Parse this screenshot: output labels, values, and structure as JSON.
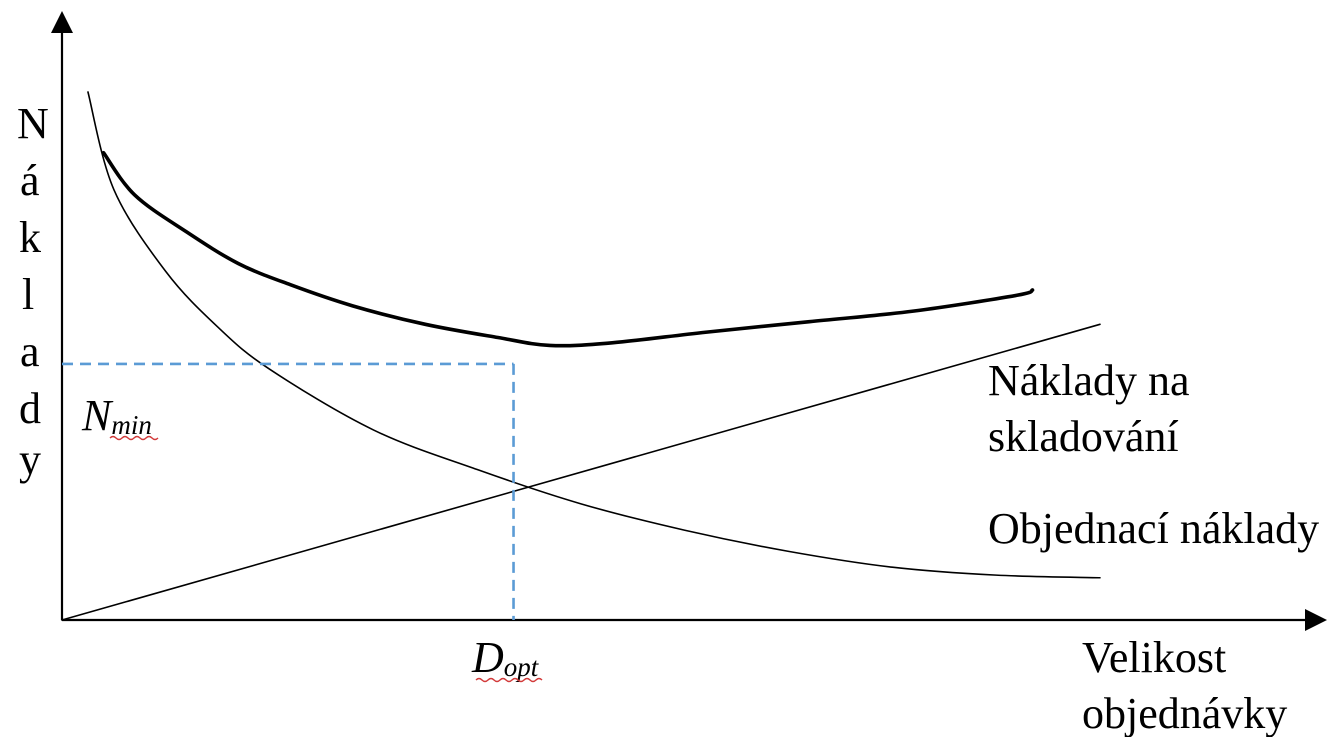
{
  "chart_data": {
    "type": "line",
    "title": "",
    "xlabel_lines": [
      "Velikost",
      "objednávky"
    ],
    "ylabel_letters": [
      "N",
      "á",
      "k",
      "l",
      "a",
      "d",
      "y"
    ],
    "x_ticks": [],
    "y_ticks": [],
    "grid": false,
    "xlim": [
      0,
      10
    ],
    "ylim": [
      0,
      10
    ],
    "series": [
      {
        "id": "ordering",
        "label": "Objednací náklady",
        "style": "thin",
        "x": [
          0.25,
          0.5,
          1,
          1.5,
          2,
          3,
          4,
          5,
          6,
          7,
          8,
          9,
          10
        ],
        "y": [
          10.0,
          8.15,
          6.6,
          5.55,
          4.75,
          3.6,
          2.85,
          2.2,
          1.7,
          1.3,
          1.0,
          0.85,
          0.8
        ]
      },
      {
        "id": "storage",
        "label_lines": [
          "Náklady na",
          "skladování"
        ],
        "style": "thin",
        "x": [
          0,
          10
        ],
        "y": [
          0,
          5.6
        ]
      },
      {
        "id": "total",
        "label": "",
        "style": "thick",
        "x": [
          0.4,
          0.7,
          1.2,
          1.7,
          2.2,
          2.8,
          3.5,
          4.2,
          4.7,
          5.3,
          6.2,
          7.2,
          8.2,
          9.2,
          9.35
        ],
        "y": [
          8.85,
          8.05,
          7.35,
          6.75,
          6.35,
          5.95,
          5.6,
          5.35,
          5.2,
          5.25,
          5.45,
          5.65,
          5.85,
          6.15,
          6.25
        ]
      }
    ],
    "optimum": {
      "x": 4.35,
      "y_min": 4.85,
      "y_intersection": 2.45,
      "line_color": "#5b9bd5",
      "x_label_main": "D",
      "x_label_sub": "opt",
      "y_label_main": "N",
      "y_label_sub": "min"
    }
  }
}
